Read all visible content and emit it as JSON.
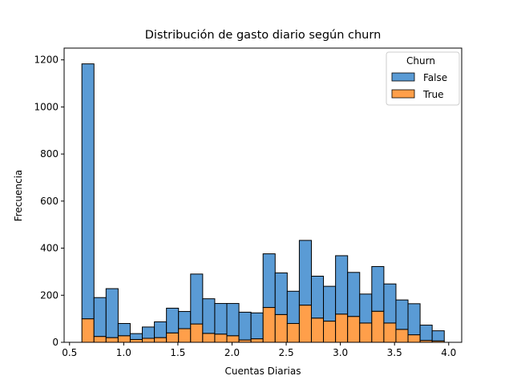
{
  "chart_data": {
    "type": "bar",
    "stacked": true,
    "title": "Distribución de gasto diario según churn",
    "xlabel": "Cuentas Diarias",
    "ylabel": "Frecuencia",
    "xlim": [
      0.45,
      4.12
    ],
    "ylim": [
      0,
      1250
    ],
    "xticks": [
      0.5,
      1.0,
      1.5,
      2.0,
      2.5,
      3.0,
      3.5,
      4.0
    ],
    "xtick_labels": [
      "0.5",
      "1.0",
      "1.5",
      "2.0",
      "2.5",
      "3.0",
      "3.5",
      "4.0"
    ],
    "yticks": [
      0,
      200,
      400,
      600,
      800,
      1000,
      1200
    ],
    "ytick_labels": [
      "0",
      "200",
      "400",
      "600",
      "800",
      "1000",
      "1200"
    ],
    "bin_start": 0.614,
    "bin_width": 0.1115,
    "legend": {
      "title": "Churn",
      "position": "top-right"
    },
    "series": [
      {
        "name": "True",
        "color": "#ff9f4a",
        "values": [
          100,
          25,
          20,
          28,
          12,
          17,
          20,
          40,
          58,
          78,
          38,
          35,
          28,
          10,
          15,
          148,
          118,
          80,
          158,
          103,
          90,
          120,
          110,
          82,
          132,
          82,
          55,
          32,
          8,
          6
        ]
      },
      {
        "name": "False",
        "color": "#5a9bd5",
        "values": [
          1083,
          165,
          208,
          52,
          25,
          48,
          67,
          105,
          73,
          212,
          147,
          130,
          137,
          118,
          110,
          228,
          177,
          137,
          275,
          178,
          148,
          248,
          187,
          123,
          190,
          166,
          125,
          132,
          65,
          43
        ]
      }
    ]
  }
}
